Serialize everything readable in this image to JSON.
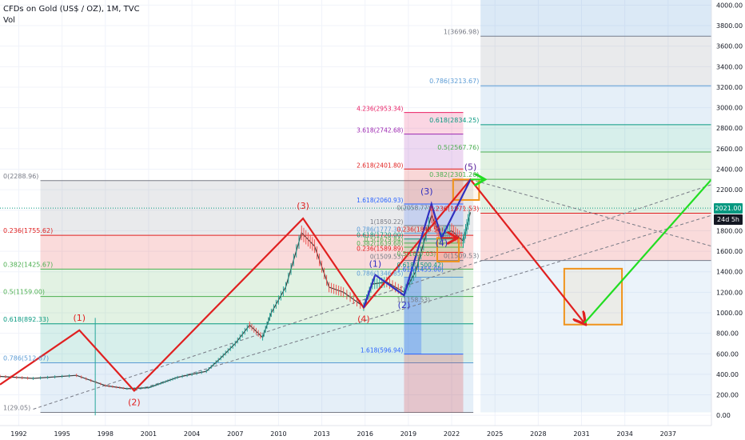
{
  "header": {
    "title": "CFDs on Gold (US$ / OZ), 1M, TVC",
    "indicator": "Vol"
  },
  "price_tags": {
    "last_price": "2021.00",
    "countdown": "24d 5h",
    "color": "#089981",
    "countdown_color": "#131722"
  },
  "chart_data": {
    "type": "line",
    "xlim": [
      1990.7,
      2040.0
    ],
    "ylim": [
      -100,
      4050
    ],
    "x_ticks": [
      1992,
      1995,
      1998,
      2001,
      2004,
      2007,
      2010,
      2013,
      2016,
      2019,
      2022,
      2025,
      2028,
      2031,
      2034,
      2037
    ],
    "y_ticks": [
      0,
      200,
      400,
      600,
      800,
      1000,
      1200,
      1400,
      1600,
      1800,
      2000,
      2200,
      2400,
      2600,
      2800,
      3000,
      3200,
      3400,
      3600,
      3800,
      4000
    ],
    "y_tick_labels": [
      "0.00",
      "200.00",
      "400.00",
      "600.00",
      "800.00",
      "1000.00",
      "1200.00",
      "1400.00",
      "1600.00",
      "1800.00",
      "2000.00",
      "2200.00",
      "2400.00",
      "2600.00",
      "2800.00",
      "3000.00",
      "3200.00",
      "3400.00",
      "3600.00",
      "3800.00",
      "4000.00"
    ],
    "last_price": 2021.0,
    "price_series": {
      "name": "Gold",
      "x": [
        1990.7,
        1993,
        1996,
        1998,
        1999.5,
        2001,
        2002,
        2003,
        2005,
        2006,
        2007,
        2008,
        2008.9,
        2009.5,
        2010.5,
        2011.6,
        2012.5,
        2013.5,
        2014.5,
        2015.9,
        2016.5,
        2017.5,
        2018.7,
        2019.5,
        2020.6,
        2021.2,
        2022.0,
        2022.8,
        2023.3
      ],
      "y": [
        380,
        360,
        390,
        290,
        260,
        270,
        320,
        370,
        430,
        560,
        700,
        880,
        760,
        1000,
        1250,
        1780,
        1650,
        1250,
        1200,
        1060,
        1280,
        1300,
        1200,
        1400,
        1950,
        1760,
        1800,
        1700,
        1980
      ]
    },
    "wave_main": {
      "color": "#e02020",
      "x": [
        1990.7,
        1996.2,
        2000.0,
        2011.7,
        2015.9,
        2023.3,
        2031.2
      ],
      "y": [
        300,
        830,
        240,
        1920,
        1050,
        2300,
        900
      ],
      "labels": [
        "(1)",
        "(2)",
        "(3)",
        "(4)",
        "(5)"
      ],
      "label_colors": [
        "#e02020",
        "#e02020",
        "#e02020",
        "#e02020",
        "#5a1f9a"
      ]
    },
    "wave_projection": {
      "color": "#22dd22",
      "x": [
        2031.2,
        2040.0
      ],
      "y": [
        900,
        2300
      ]
    },
    "wave_sub": {
      "color": "#3030c0",
      "x": [
        2015.9,
        2016.7,
        2018.7,
        2020.6,
        2021.3,
        2023.3
      ],
      "y": [
        1050,
        1370,
        1170,
        2060,
        1730,
        2300
      ],
      "labels": [
        "(1)",
        "(2)",
        "(3)",
        "(4)",
        "(5)"
      ]
    },
    "small_arrow": {
      "color": "#e02020",
      "x": [
        2021.3,
        2022.3
      ],
      "y": [
        1730,
        1730
      ]
    },
    "fib_left": {
      "x_start": 1993.5,
      "x_end": 2023.5,
      "levels": [
        {
          "label": "0(2288.96)",
          "value": 2288.96,
          "color": "#787b86"
        },
        {
          "label": "0.236(1755.62)",
          "value": 1755.62,
          "color": "#e02020"
        },
        {
          "label": "0.382(1425.67)",
          "value": 1425.67,
          "color": "#4caf50"
        },
        {
          "label": "0.5(1159.00)",
          "value": 1159.0,
          "color": "#4caf50"
        },
        {
          "label": "0.618(892.33)",
          "value": 892.33,
          "color": "#089981"
        },
        {
          "label": "0.786(512.67)",
          "value": 512.67,
          "color": "#5b9bd5"
        },
        {
          "label": "1(29.05)",
          "value": 29.05,
          "color": "#787b86"
        }
      ]
    },
    "fib_right": {
      "x_start": 2024.0,
      "x_end": 2040.0,
      "levels": [
        {
          "label": "1(3696.98)",
          "value": 3696.98,
          "color": "#787b86"
        },
        {
          "label": "0.786(3213.67)",
          "value": 3213.67,
          "color": "#5b9bd5"
        },
        {
          "label": "0.618(2834.25)",
          "value": 2834.25,
          "color": "#089981"
        },
        {
          "label": "0.5(2567.76)",
          "value": 2567.76,
          "color": "#4caf50"
        },
        {
          "label": "0.382(2301.26)",
          "value": 2301.26,
          "color": "#4caf50"
        },
        {
          "label": "0.236(1971.53)",
          "value": 1971.53,
          "color": "#e02020"
        },
        {
          "label": "0(1509.53)",
          "value": 1509.53,
          "color": "#787b86"
        }
      ]
    },
    "fib_ext": {
      "x_start": 2018.7,
      "x_end": 2022.8,
      "levels": [
        {
          "label": "4.236(2953.34)",
          "value": 2953.34,
          "color": "#e91e63"
        },
        {
          "label": "3.618(2742.68)",
          "value": 2742.68,
          "color": "#9c27b0"
        },
        {
          "label": "2.618(2401.80)",
          "value": 2401.8,
          "color": "#e02020"
        },
        {
          "label": "1.618(2060.93)",
          "value": 2060.93,
          "color": "#2962ff"
        },
        {
          "label": "1(1850.22)",
          "value": 1850.22,
          "color": "#787b86"
        },
        {
          "label": "0.786(1777.33)",
          "value": 1777.33,
          "color": "#5b9bd5"
        },
        {
          "label": "0.618(1720.00)",
          "value": 1720.0,
          "color": "#089981"
        },
        {
          "label": "0.5(1679.84)",
          "value": 1679.84,
          "color": "#4caf50"
        },
        {
          "label": "0.382(1639.68)",
          "value": 1639.68,
          "color": "#4caf50"
        },
        {
          "label": "0.236(1589.89)",
          "value": 1589.89,
          "color": "#e02020"
        },
        {
          "label": "0(1509.53)",
          "value": 1509.53,
          "color": "#787b86"
        },
        {
          "label": "0.786(1346.85)",
          "value": 1346.85,
          "color": "#5b9bd5"
        },
        {
          "label": "1.618(596.94)",
          "value": 596.94,
          "color": "#2962ff"
        }
      ]
    },
    "fib_mid_labels": [
      {
        "label": "0(2058.77)",
        "value": 2058.77,
        "color": "#787b86"
      },
      {
        "label": "0.236(1845.55)",
        "value": 1845.55,
        "color": "#e02020"
      },
      {
        "label": "0.5(1607.03)",
        "value": 1607.03,
        "color": "#4caf50"
      },
      {
        "label": "0.618(1500.42)",
        "value": 1500.42,
        "color": "#089981"
      },
      {
        "label": "1(1158.53)",
        "value": 1158.53,
        "color": "#787b86"
      },
      {
        "label": "1.618(1455.00)",
        "value": 1455.0,
        "color": "#2962ff"
      }
    ],
    "target_boxes": [
      {
        "x": [
          2029.8,
          2033.8
        ],
        "y": [
          885,
          1430
        ],
        "color": "#f0931a"
      },
      {
        "x": [
          2022.1,
          2023.9
        ],
        "y": [
          2100,
          2300
        ],
        "color": "#f0931a"
      },
      {
        "x": [
          2021.0,
          2022.5
        ],
        "y": [
          1500,
          1730
        ],
        "color": "#f0931a"
      }
    ]
  }
}
